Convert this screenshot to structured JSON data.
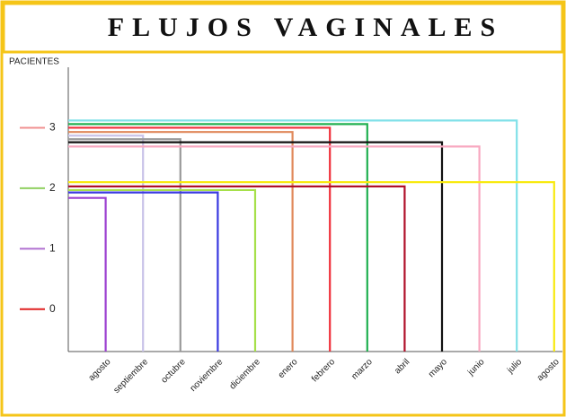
{
  "chart_data": {
    "type": "step",
    "title": "FLUJOS VAGINALES",
    "ylabel": "PACIENTES",
    "categories": [
      "agosto",
      "septiembre",
      "octubre",
      "noviembre",
      "diciembre",
      "enero",
      "febrero",
      "marzo",
      "abril",
      "mayo",
      "junio",
      "julio",
      "agosto"
    ],
    "values": [
      1.84,
      2.87,
      2.81,
      1.93,
      1.97,
      2.93,
      3.0,
      3.06,
      2.03,
      2.76,
      2.69,
      3.12,
      2.1
    ],
    "colors": [
      "#9b3fd0",
      "#c9c3e8",
      "#9a9a9a",
      "#3a3ae0",
      "#a6e04a",
      "#e0885a",
      "#f0303a",
      "#20b050",
      "#b0102a",
      "#111111",
      "#f8a8c0",
      "#80e0e8",
      "#f8ea10"
    ],
    "ylim": [
      -0.7,
      4
    ],
    "yticks": [
      0,
      1,
      2,
      3
    ],
    "ytick_colors": [
      "#e02020",
      "#b070d0",
      "#90d060",
      "#f09090"
    ]
  }
}
